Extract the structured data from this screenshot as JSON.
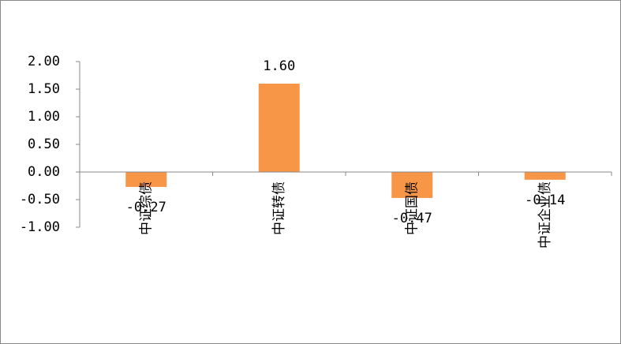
{
  "chart_data": {
    "type": "bar",
    "categories": [
      "中证综债",
      "中证转债",
      "中证国债",
      "中证企业债"
    ],
    "values": [
      -0.27,
      1.6,
      -0.47,
      -0.14
    ],
    "value_labels": [
      "-0.27",
      "1.60",
      "-0.47",
      "-0.14"
    ],
    "color": "#f79646",
    "ylim": [
      -1,
      2
    ],
    "yticks": [
      {
        "value": 2,
        "label": "2.00"
      },
      {
        "value": 1.5,
        "label": "1.50"
      },
      {
        "value": 1,
        "label": "1.00"
      },
      {
        "value": 0.5,
        "label": "0.50"
      },
      {
        "value": 0,
        "label": "0.00"
      },
      {
        "value": -0.5,
        "label": "-0.50"
      },
      {
        "value": -1,
        "label": "-1.00"
      }
    ]
  }
}
